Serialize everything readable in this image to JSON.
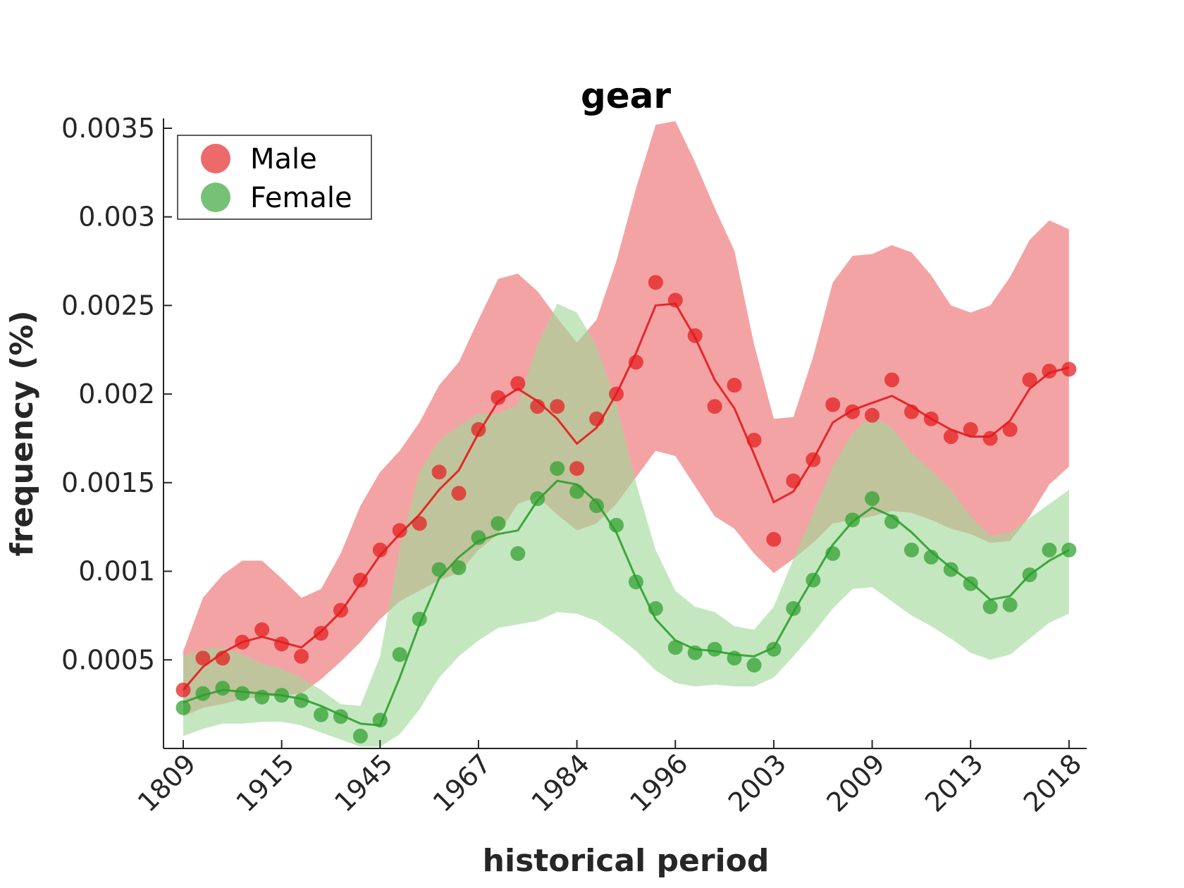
{
  "chart_data": {
    "type": "line",
    "title": "gear",
    "xlabel": "historical period",
    "ylabel": "frequency (%)",
    "x_tick_labels": [
      "1809",
      "1915",
      "1945",
      "1967",
      "1984",
      "1996",
      "2003",
      "2009",
      "2013",
      "2018"
    ],
    "x_tick_positions": [
      1,
      6,
      11,
      16,
      21,
      26,
      31,
      36,
      41,
      46
    ],
    "y_ticks": [
      0.0005,
      0.001,
      0.0015,
      0.002,
      0.0025,
      0.003,
      0.0035
    ],
    "y_tick_labels": [
      "0.0005",
      "0.001",
      "0.0015",
      "0.002",
      "0.0025",
      "0.003",
      "0.0035"
    ],
    "xlim": [
      0,
      47
    ],
    "ylim": [
      0,
      0.0035
    ],
    "grid": false,
    "legend_position": "top-left",
    "series": [
      {
        "name": "Male",
        "color": "#e41a1c",
        "band_color": "#f4a3a4",
        "x": [
          1,
          2,
          3,
          4,
          5,
          6,
          7,
          8,
          9,
          10,
          11,
          12,
          13,
          14,
          15,
          16,
          17,
          18,
          19,
          20,
          21,
          22,
          23,
          24,
          25,
          26,
          27,
          28,
          29,
          30,
          31,
          32,
          33,
          34,
          35,
          36,
          37,
          38,
          39,
          40,
          41,
          42,
          43,
          44,
          45,
          46
        ],
        "points": [
          0.00033,
          0.00051,
          0.00051,
          0.0006,
          0.00067,
          0.00059,
          0.00052,
          0.00065,
          0.00078,
          0.00095,
          0.00112,
          0.00123,
          0.00127,
          0.00156,
          0.00144,
          0.0018,
          0.00198,
          0.00206,
          0.00193,
          0.00193,
          0.00158,
          0.00186,
          0.002,
          0.00218,
          0.00263,
          0.00253,
          0.00233,
          0.00193,
          0.00205,
          0.00174,
          0.00118,
          0.00151,
          0.00163,
          0.00194,
          0.0019,
          0.00188,
          0.00208,
          0.0019,
          0.00186,
          0.00176,
          0.0018,
          0.00175,
          0.0018,
          0.00208,
          0.00213,
          0.00214
        ],
        "line": [
          0.00033,
          0.00046,
          0.00054,
          0.0006,
          0.00063,
          0.0006,
          0.00057,
          0.00066,
          0.00077,
          0.00093,
          0.00109,
          0.00121,
          0.00132,
          0.00146,
          0.00157,
          0.00178,
          0.00196,
          0.00203,
          0.00196,
          0.00186,
          0.00172,
          0.00181,
          0.002,
          0.00223,
          0.0025,
          0.00251,
          0.00232,
          0.00208,
          0.00192,
          0.00166,
          0.00139,
          0.00145,
          0.00163,
          0.00184,
          0.00191,
          0.00195,
          0.00199,
          0.00193,
          0.00186,
          0.0018,
          0.00176,
          0.00176,
          0.00185,
          0.00203,
          0.00212,
          0.00215
        ],
        "upper": [
          0.00055,
          0.00085,
          0.00098,
          0.00106,
          0.00106,
          0.00096,
          0.00085,
          0.0009,
          0.0011,
          0.00137,
          0.00156,
          0.00168,
          0.00184,
          0.00205,
          0.00218,
          0.00242,
          0.00265,
          0.00268,
          0.00258,
          0.00243,
          0.00229,
          0.00242,
          0.00275,
          0.00316,
          0.00352,
          0.00354,
          0.00331,
          0.00305,
          0.00281,
          0.00228,
          0.00186,
          0.00187,
          0.00221,
          0.00263,
          0.00278,
          0.00279,
          0.00284,
          0.0028,
          0.00267,
          0.0025,
          0.00246,
          0.0025,
          0.00266,
          0.00287,
          0.00298,
          0.00293
        ],
        "lower": [
          0.00018,
          0.00023,
          0.00025,
          0.00028,
          0.00029,
          0.0003,
          0.00031,
          0.00039,
          0.00049,
          0.0006,
          0.00073,
          0.00083,
          0.00089,
          0.00095,
          0.00099,
          0.00112,
          0.00121,
          0.00138,
          0.00142,
          0.00132,
          0.00123,
          0.00127,
          0.00138,
          0.00153,
          0.00168,
          0.00165,
          0.00148,
          0.00131,
          0.00124,
          0.0011,
          0.00099,
          0.00107,
          0.00116,
          0.00127,
          0.00129,
          0.00131,
          0.00134,
          0.00133,
          0.00129,
          0.00124,
          0.00121,
          0.00116,
          0.00117,
          0.00131,
          0.00149,
          0.00159
        ]
      },
      {
        "name": "Female",
        "color": "#2ca02c",
        "band_color": "#9fd89a",
        "x": [
          1,
          2,
          3,
          4,
          5,
          6,
          7,
          8,
          9,
          10,
          11,
          12,
          13,
          14,
          15,
          16,
          17,
          18,
          19,
          20,
          21,
          22,
          23,
          24,
          25,
          26,
          27,
          28,
          29,
          30,
          31,
          32,
          33,
          34,
          35,
          36,
          37,
          38,
          39,
          40,
          41,
          42,
          43,
          44,
          45,
          46
        ],
        "points": [
          0.00023,
          0.00031,
          0.00034,
          0.00031,
          0.00029,
          0.0003,
          0.00027,
          0.00019,
          0.00018,
          7e-05,
          0.00016,
          0.00053,
          0.00073,
          0.00101,
          0.00102,
          0.00119,
          0.00127,
          0.0011,
          0.00141,
          0.00158,
          0.00145,
          0.00137,
          0.00126,
          0.00094,
          0.00079,
          0.00057,
          0.00054,
          0.00056,
          0.00051,
          0.00047,
          0.00056,
          0.00079,
          0.00095,
          0.0011,
          0.00129,
          0.00141,
          0.00128,
          0.00112,
          0.00108,
          0.00101,
          0.00093,
          0.0008,
          0.00081,
          0.00098,
          0.00112,
          0.00112
        ],
        "line": [
          0.00026,
          0.0003,
          0.00033,
          0.00032,
          0.00031,
          0.0003,
          0.00028,
          0.00024,
          0.00019,
          0.00014,
          0.00013,
          0.0004,
          0.0007,
          0.00096,
          0.00108,
          0.00117,
          0.00121,
          0.00123,
          0.0014,
          0.00151,
          0.00149,
          0.00139,
          0.00122,
          0.00096,
          0.00073,
          0.00061,
          0.00056,
          0.00055,
          0.00053,
          0.00052,
          0.00057,
          0.00077,
          0.00096,
          0.00115,
          0.00128,
          0.00136,
          0.00131,
          0.00122,
          0.00111,
          0.00102,
          0.00094,
          0.00084,
          0.00086,
          0.00098,
          0.00106,
          0.00112
        ],
        "upper": [
          0.00052,
          0.00056,
          0.00057,
          0.00053,
          0.00048,
          0.00045,
          0.0004,
          0.00033,
          0.00025,
          0.00024,
          0.00052,
          0.00113,
          0.00156,
          0.00174,
          0.00182,
          0.00189,
          0.00189,
          0.00194,
          0.00228,
          0.00251,
          0.00246,
          0.00227,
          0.00195,
          0.0015,
          0.00112,
          0.00089,
          0.0008,
          0.00077,
          0.00069,
          0.00067,
          0.0008,
          0.00107,
          0.00133,
          0.00159,
          0.00178,
          0.00188,
          0.00181,
          0.00167,
          0.00157,
          0.00146,
          0.00131,
          0.0012,
          0.00122,
          0.0013,
          0.00138,
          0.00146
        ],
        "lower": [
          7e-05,
          0.00011,
          0.00014,
          0.00014,
          0.00015,
          0.00015,
          0.00013,
          9e-05,
          5e-05,
          1e-05,
          1e-05,
          8e-05,
          0.00022,
          0.0004,
          0.00052,
          0.00061,
          0.00068,
          0.0007,
          0.00072,
          0.00077,
          0.00076,
          0.00072,
          0.00064,
          0.00055,
          0.00044,
          0.00037,
          0.00035,
          0.00036,
          0.00035,
          0.00035,
          0.0004,
          0.00052,
          0.00065,
          0.00079,
          0.0009,
          0.00091,
          0.00083,
          0.00075,
          0.00069,
          0.00062,
          0.00054,
          0.0005,
          0.00053,
          0.00062,
          0.00071,
          0.00076
        ]
      }
    ]
  }
}
